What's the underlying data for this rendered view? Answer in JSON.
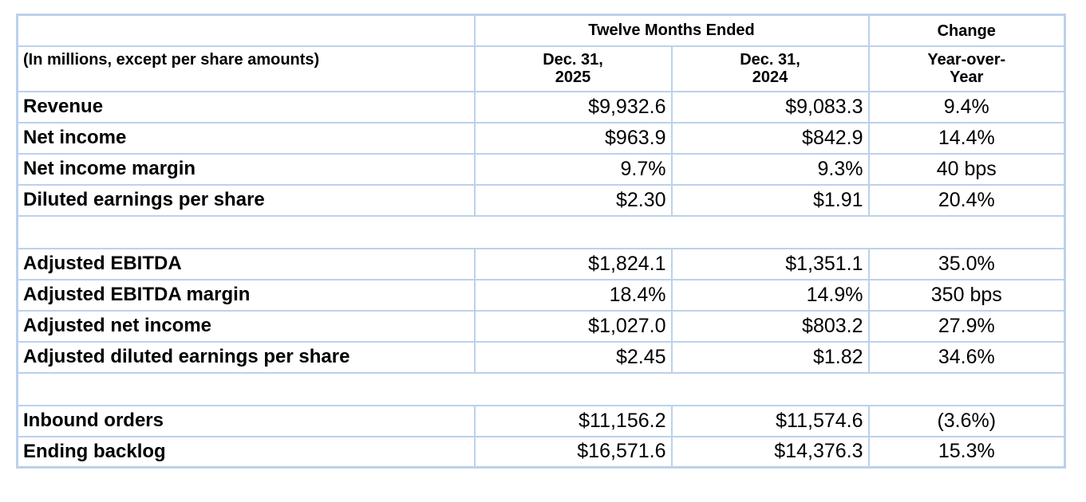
{
  "colors": {
    "border": "#bcd1eb",
    "text": "#000000",
    "background": "#ffffff"
  },
  "table": {
    "header": {
      "group_title": "Twelve Months Ended",
      "change_title": "Change",
      "row_label_note": "(In millions, except per share amounts)",
      "col_2025": "Dec. 31,\n2025",
      "col_2024": "Dec. 31,\n2024",
      "change_sub": "Year-over-\nYear"
    },
    "rows": [
      {
        "label": "Revenue",
        "y2025": "$9,932.6",
        "y2024": "$9,083.3",
        "change": "9.4%"
      },
      {
        "label": "Net income",
        "y2025": "$963.9",
        "y2024": "$842.9",
        "change": "14.4%"
      },
      {
        "label": "Net income margin",
        "y2025": "9.7%",
        "y2024": "9.3%",
        "change": "40 bps"
      },
      {
        "label": "Diluted earnings per share",
        "y2025": "$2.30",
        "y2024": "$1.91",
        "change": "20.4%"
      },
      {
        "spacer": true
      },
      {
        "label": "Adjusted EBITDA",
        "y2025": "$1,824.1",
        "y2024": "$1,351.1",
        "change": "35.0%"
      },
      {
        "label": "Adjusted EBITDA margin",
        "y2025": "18.4%",
        "y2024": "14.9%",
        "change": "350 bps"
      },
      {
        "label": "Adjusted net income",
        "y2025": "$1,027.0",
        "y2024": "$803.2",
        "change": "27.9%"
      },
      {
        "label": "Adjusted diluted earnings per share",
        "y2025": "$2.45",
        "y2024": "$1.82",
        "change": "34.6%"
      },
      {
        "spacer": true
      },
      {
        "label": "Inbound orders",
        "y2025": "$11,156.2",
        "y2024": "$11,574.6",
        "change": "(3.6%)"
      },
      {
        "label": "Ending backlog",
        "y2025": "$16,571.6",
        "y2024": "$14,376.3",
        "change": "15.3%"
      }
    ]
  }
}
